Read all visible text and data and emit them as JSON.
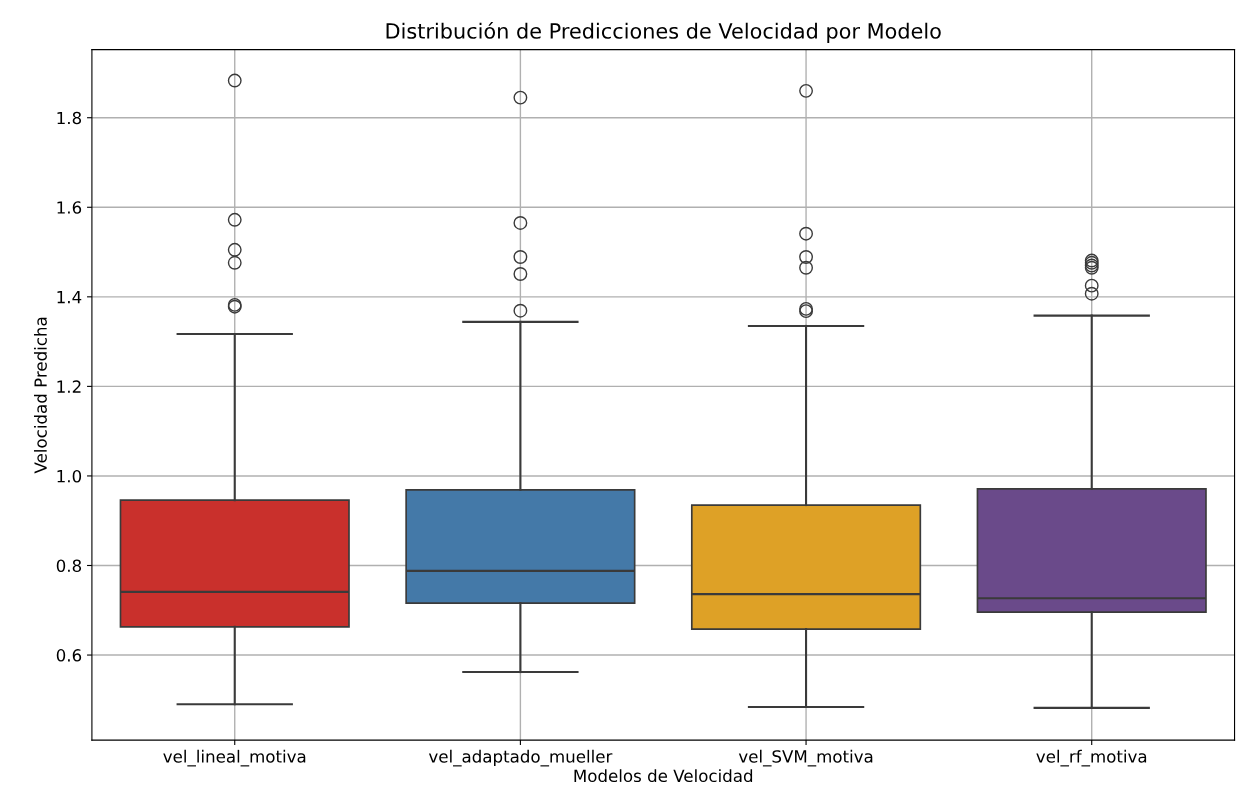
{
  "chart_data": {
    "type": "box",
    "title": "Distribución de Predicciones de Velocidad por Modelo",
    "xlabel": "Modelos de Velocidad",
    "ylabel": "Velocidad Predicha",
    "categories": [
      "vel_lineal_motiva",
      "vel_adaptado_mueller",
      "vel_SVM_motiva",
      "vel_rf_motiva"
    ],
    "colors": [
      "#c9302c",
      "#4479a8",
      "#dea126",
      "#6a4a8a"
    ],
    "boxes": [
      {
        "low": 0.49,
        "q1": 0.663,
        "median": 0.741,
        "q3": 0.946,
        "high": 1.317,
        "outliers": [
          1.883,
          1.572,
          1.505,
          1.476,
          1.382,
          1.378
        ]
      },
      {
        "low": 0.562,
        "q1": 0.716,
        "median": 0.788,
        "q3": 0.969,
        "high": 1.344,
        "outliers": [
          1.845,
          1.565,
          1.489,
          1.451,
          1.369
        ]
      },
      {
        "low": 0.484,
        "q1": 0.658,
        "median": 0.736,
        "q3": 0.935,
        "high": 1.335,
        "outliers": [
          1.86,
          1.541,
          1.489,
          1.465,
          1.373,
          1.368
        ]
      },
      {
        "low": 0.482,
        "q1": 0.696,
        "median": 0.727,
        "q3": 0.971,
        "high": 1.358,
        "outliers": [
          1.481,
          1.476,
          1.47,
          1.465,
          1.425,
          1.407
        ]
      }
    ],
    "ylim": [
      0.41,
      1.952
    ],
    "yticks": [
      {
        "value": 0.6,
        "label": "0.6"
      },
      {
        "value": 0.8,
        "label": "0.8"
      },
      {
        "value": 1.0,
        "label": "1.0"
      },
      {
        "value": 1.2,
        "label": "1.2"
      },
      {
        "value": 1.4,
        "label": "1.4"
      },
      {
        "value": 1.6,
        "label": "1.6"
      },
      {
        "value": 1.8,
        "label": "1.8"
      }
    ],
    "grid": true
  }
}
